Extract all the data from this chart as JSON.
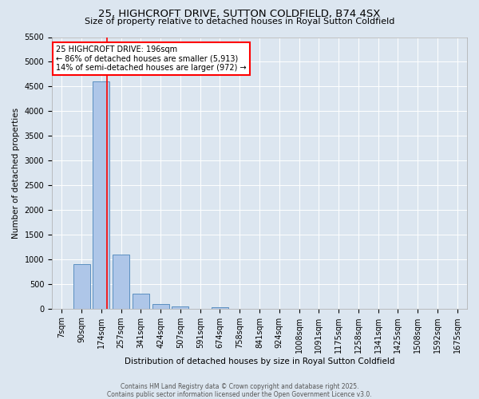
{
  "title": "25, HIGHCROFT DRIVE, SUTTON COLDFIELD, B74 4SX",
  "subtitle": "Size of property relative to detached houses in Royal Sutton Coldfield",
  "xlabel": "Distribution of detached houses by size in Royal Sutton Coldfield",
  "ylabel": "Number of detached properties",
  "footer": "Contains HM Land Registry data © Crown copyright and database right 2025.\nContains public sector information licensed under the Open Government Licence v3.0.",
  "categories": [
    "7sqm",
    "90sqm",
    "174sqm",
    "257sqm",
    "341sqm",
    "424sqm",
    "507sqm",
    "591sqm",
    "674sqm",
    "758sqm",
    "841sqm",
    "924sqm",
    "1008sqm",
    "1091sqm",
    "1175sqm",
    "1258sqm",
    "1341sqm",
    "1425sqm",
    "1508sqm",
    "1592sqm",
    "1675sqm"
  ],
  "values": [
    0,
    900,
    4600,
    1100,
    300,
    85,
    50,
    0,
    30,
    0,
    0,
    0,
    0,
    0,
    0,
    0,
    0,
    0,
    0,
    0,
    0
  ],
  "bar_color": "#aec6e8",
  "bar_edge_color": "#5a8fc0",
  "ylim": [
    0,
    5500
  ],
  "property_line_x": 2.27,
  "annotation_title": "25 HIGHCROFT DRIVE: 196sqm",
  "annotation_line1": "← 86% of detached houses are smaller (5,913)",
  "annotation_line2": "14% of semi-detached houses are larger (972) →",
  "annotation_box_color": "#ff0000",
  "background_color": "#dce6f0",
  "yticks": [
    0,
    500,
    1000,
    1500,
    2000,
    2500,
    3000,
    3500,
    4000,
    4500,
    5000,
    5500
  ],
  "title_fontsize": 9.5,
  "subtitle_fontsize": 8,
  "axis_fontsize": 7.5,
  "tick_fontsize": 7,
  "footer_fontsize": 5.5
}
